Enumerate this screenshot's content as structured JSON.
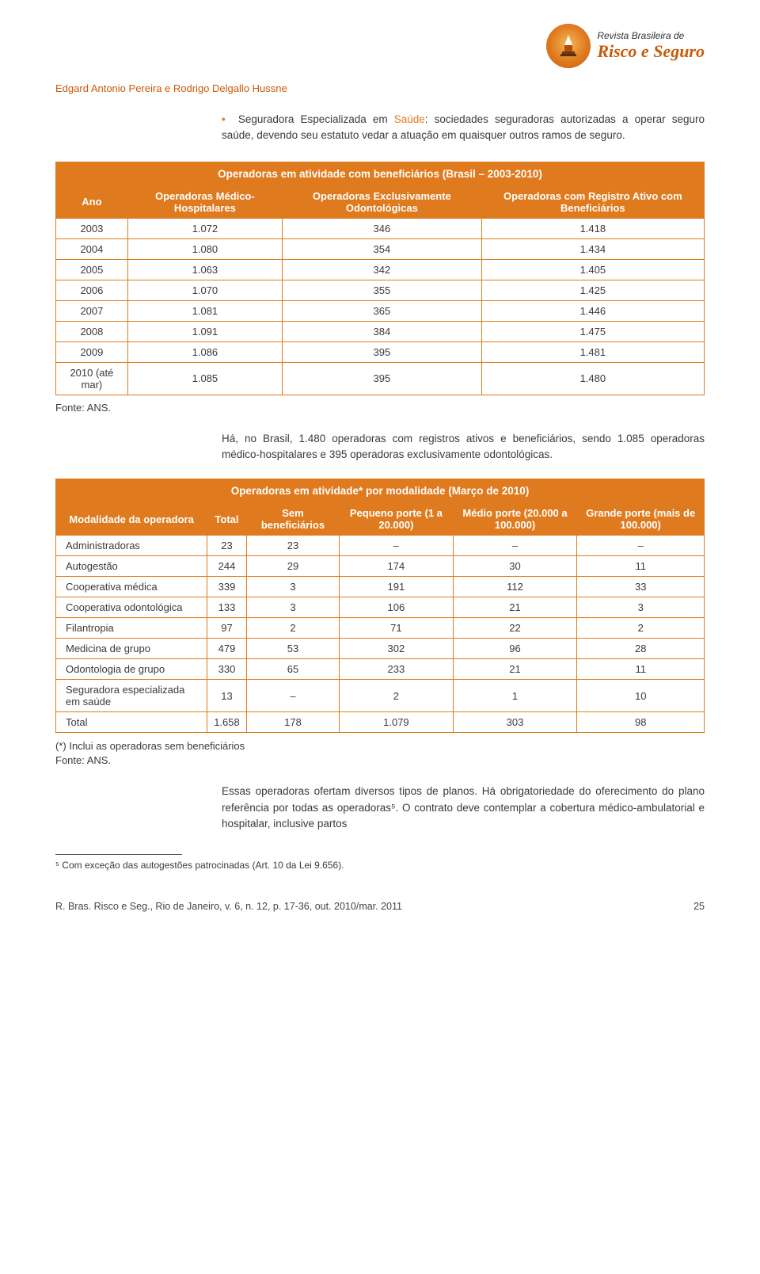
{
  "journal": {
    "top_line": "Revista Brasileira de",
    "main_line": "Risco e Seguro"
  },
  "authors": "Edgard Antonio Pereira e Rodrigo Delgallo Hussne",
  "bullet_text_prefix": "Seguradora Especializada em ",
  "bullet_highlight": "Saúde",
  "bullet_text_suffix": ": sociedades seguradoras autorizadas a operar seguro saúde, devendo seu estatuto vedar a atuação em quaisquer outros ramos de seguro.",
  "table1": {
    "title": "Operadoras em atividade com beneficiários (Brasil – 2003-2010)",
    "headers": [
      "Ano",
      "Operadoras Médico-Hospitalares",
      "Operadoras Exclusivamente Odontológicas",
      "Operadoras com Registro Ativo com Beneficiários"
    ],
    "rows": [
      [
        "2003",
        "1.072",
        "346",
        "1.418"
      ],
      [
        "2004",
        "1.080",
        "354",
        "1.434"
      ],
      [
        "2005",
        "1.063",
        "342",
        "1.405"
      ],
      [
        "2006",
        "1.070",
        "355",
        "1.425"
      ],
      [
        "2007",
        "1.081",
        "365",
        "1.446"
      ],
      [
        "2008",
        "1.091",
        "384",
        "1.475"
      ],
      [
        "2009",
        "1.086",
        "395",
        "1.481"
      ],
      [
        "2010 (até mar)",
        "1.085",
        "395",
        "1.480"
      ]
    ]
  },
  "source1": "Fonte: ANS.",
  "para1": "Há, no Brasil, 1.480 operadoras com registros ativos e beneficiários, sendo 1.085 operadoras médico-hospitalares e 395 operadoras exclusivamente odontológicas.",
  "table2": {
    "title": "Operadoras em atividade* por modalidade (Março de 2010)",
    "headers": [
      "Modalidade da operadora",
      "Total",
      "Sem beneficiários",
      "Pequeno porte (1 a 20.000)",
      "Médio porte (20.000 a 100.000)",
      "Grande porte (mais de 100.000)"
    ],
    "rows": [
      [
        "Administradoras",
        "23",
        "23",
        "–",
        "–",
        "–"
      ],
      [
        "Autogestão",
        "244",
        "29",
        "174",
        "30",
        "11"
      ],
      [
        "Cooperativa médica",
        "339",
        "3",
        "191",
        "112",
        "33"
      ],
      [
        "Cooperativa odontológica",
        "133",
        "3",
        "106",
        "21",
        "3"
      ],
      [
        "Filantropia",
        "97",
        "2",
        "71",
        "22",
        "2"
      ],
      [
        "Medicina de grupo",
        "479",
        "53",
        "302",
        "96",
        "28"
      ],
      [
        "Odontologia de grupo",
        "330",
        "65",
        "233",
        "21",
        "11"
      ],
      [
        "Seguradora especializada em saúde",
        "13",
        "–",
        "2",
        "1",
        "10"
      ],
      [
        "Total",
        "1.658",
        "178",
        "1.079",
        "303",
        "98"
      ]
    ]
  },
  "table2_note": "(*) Inclui as operadoras sem beneficiários\nFonte: ANS.",
  "para2": "Essas operadoras ofertam diversos tipos de planos. Há obrigatoriedade do oferecimento do plano referência por todas as operadoras⁵. O contrato deve contemplar a cobertura médico-ambulatorial e hospitalar, inclusive partos",
  "footnote": "⁵  Com exceção das autogestões patrocinadas (Art. 10 da Lei 9.656).",
  "footer_citation": "R. Bras. Risco e Seg., Rio de Janeiro, v. 6, n. 12, p. 17-36, out. 2010/mar. 2011",
  "footer_page": "25",
  "colors": {
    "accent": "#e07a1e",
    "accent_dark": "#c85a0a",
    "text": "#3a3a3a",
    "white": "#ffffff"
  }
}
